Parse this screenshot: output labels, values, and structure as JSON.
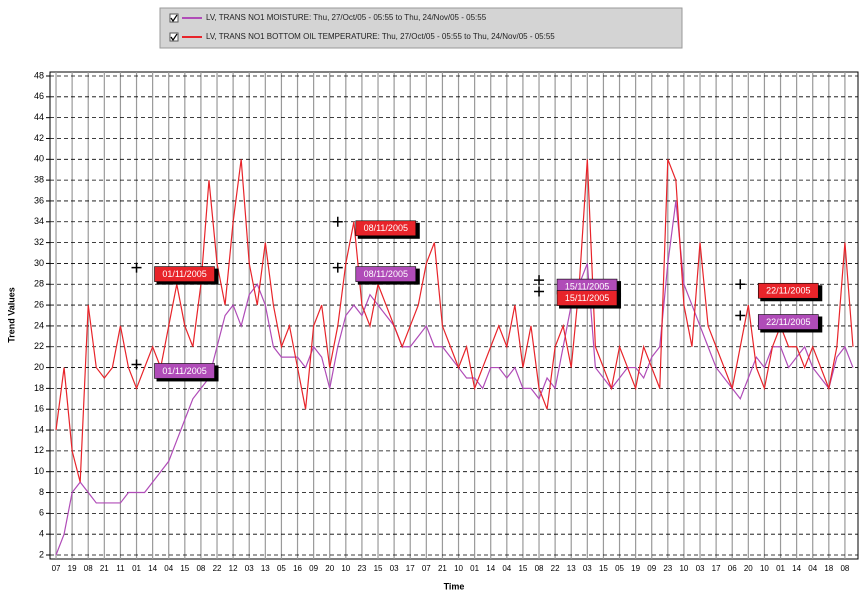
{
  "chart_data": {
    "type": "line",
    "x_label": "Time",
    "y_label": "Trend Values",
    "ylim": [
      2,
      48
    ],
    "yticks": [
      2,
      4,
      6,
      8,
      10,
      12,
      14,
      16,
      18,
      20,
      22,
      24,
      26,
      28,
      30,
      32,
      34,
      36,
      38,
      40,
      42,
      44,
      46,
      48
    ],
    "grid": true,
    "categories": [
      "07",
      null,
      "19",
      null,
      "08",
      null,
      "21",
      null,
      "11",
      null,
      "01",
      null,
      "14",
      null,
      "04",
      null,
      "15",
      null,
      "08",
      null,
      "22",
      null,
      "12",
      null,
      "03",
      null,
      "13",
      null,
      "05",
      null,
      "16",
      null,
      "09",
      null,
      "20",
      null,
      "10",
      null,
      "23",
      null,
      "15",
      null,
      "03",
      null,
      "17",
      null,
      "07",
      null,
      "21",
      null,
      "10",
      null,
      "01",
      null,
      "14",
      null,
      "04",
      null,
      "15",
      null,
      "08",
      null,
      "22",
      null,
      "13",
      null,
      "03",
      null,
      "15",
      null,
      "05",
      null,
      "19",
      null,
      "09",
      null,
      "23",
      null,
      "10",
      null,
      "03",
      null,
      "17",
      null,
      "06",
      null,
      "20",
      null,
      "10",
      null,
      "01",
      null,
      "14",
      null,
      "04",
      null,
      "18",
      null,
      "08",
      null
    ],
    "series": [
      {
        "name": "LV, TRANS NO1 MOISTURE: Thu, 27/Oct/05 - 05:55 to Thu, 24/Nov/05 - 05:55",
        "color": "#b04cb8",
        "values": [
          2,
          4,
          8,
          9,
          8,
          7,
          7,
          7,
          7,
          8,
          8,
          8,
          9,
          10,
          11,
          13,
          15,
          17,
          18,
          19,
          22,
          25,
          26,
          24,
          27,
          28,
          26,
          22,
          21,
          21,
          21,
          20,
          22,
          21,
          18,
          22,
          25,
          26,
          25,
          27,
          26,
          25,
          24,
          22,
          22,
          23,
          24,
          22,
          22,
          21,
          20,
          19,
          19,
          18,
          20,
          20,
          19,
          20,
          18,
          18,
          17,
          19,
          18,
          22,
          26,
          28,
          30,
          20,
          19,
          18,
          19,
          20,
          20,
          19,
          21,
          22,
          30,
          36,
          28,
          26,
          24,
          22,
          20,
          19,
          18,
          17,
          19,
          21,
          20,
          22,
          22,
          20,
          21,
          22,
          20,
          19,
          18,
          21,
          22,
          20
        ]
      },
      {
        "name": "LV, TRANS NO1 BOTTOM OIL TEMPERATURE: Thu, 27/Oct/05 - 05:55 to Thu, 24/Nov/05 - 05:55",
        "color": "#e8242a",
        "values": [
          14,
          20,
          12,
          9,
          26,
          20,
          19,
          20,
          24,
          20,
          18,
          20,
          22,
          20,
          24,
          28,
          24,
          22,
          28,
          38,
          30,
          26,
          34,
          40,
          30,
          26,
          32,
          26,
          22,
          24,
          20,
          16,
          24,
          26,
          20,
          24,
          30,
          34,
          26,
          24,
          28,
          26,
          24,
          22,
          24,
          26,
          30,
          32,
          24,
          22,
          20,
          22,
          18,
          20,
          22,
          24,
          22,
          26,
          20,
          24,
          18,
          16,
          22,
          24,
          20,
          28,
          40,
          22,
          20,
          18,
          22,
          20,
          18,
          22,
          20,
          18,
          40,
          38,
          26,
          22,
          32,
          24,
          22,
          20,
          18,
          22,
          26,
          20,
          18,
          22,
          24,
          22,
          22,
          20,
          22,
          20,
          18,
          22,
          32,
          22
        ]
      }
    ],
    "annotations": [
      {
        "label": "01/11/2005",
        "x": 10,
        "y": 29.6,
        "color": "#e8242a"
      },
      {
        "label": "01/11/2005",
        "x": 10,
        "y": 20.3,
        "color": "#b04cb8"
      },
      {
        "label": "08/11/2005",
        "x": 35,
        "y": 34,
        "color": "#e8242a"
      },
      {
        "label": "08/11/2005",
        "x": 35,
        "y": 29.6,
        "color": "#b04cb8"
      },
      {
        "label": "15/11/2005",
        "x": 60,
        "y": 28.4,
        "color": "#b04cb8"
      },
      {
        "label": "15/11/2005",
        "x": 60,
        "y": 27.3,
        "color": "#e8242a"
      },
      {
        "label": "22/11/2005",
        "x": 85,
        "y": 28,
        "color": "#e8242a"
      },
      {
        "label": "22/11/2005",
        "x": 85,
        "y": 25,
        "color": "#b04cb8"
      }
    ]
  }
}
